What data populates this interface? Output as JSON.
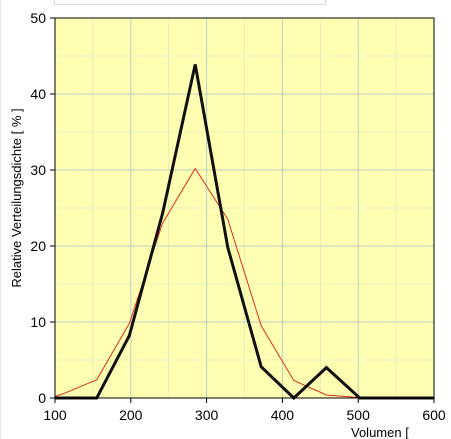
{
  "chart_data": {
    "type": "line",
    "title": "",
    "xlabel": "Volumen [",
    "ylabel": "Relative Verteilungsdichte [ % ]",
    "xlim": [
      100,
      600
    ],
    "ylim": [
      0,
      50
    ],
    "xticks": [
      100,
      200,
      300,
      400,
      500,
      600
    ],
    "yticks": [
      0,
      10,
      20,
      30,
      40,
      50
    ],
    "grid": true,
    "plot_background": "#ffffb4",
    "grid_color": "#b9cfc4",
    "series": [
      {
        "color": "#111111",
        "points": [
          {
            "x": 100,
            "y": 0
          },
          {
            "x": 155,
            "y": 0
          },
          {
            "x": 198,
            "y": 8.2
          },
          {
            "x": 242,
            "y": 24.3
          },
          {
            "x": 285,
            "y": 43.9
          },
          {
            "x": 328,
            "y": 19.8
          },
          {
            "x": 372,
            "y": 4.1
          },
          {
            "x": 415,
            "y": 0
          },
          {
            "x": 458,
            "y": 4.0
          },
          {
            "x": 502,
            "y": 0
          },
          {
            "x": 600,
            "y": 0
          }
        ]
      },
      {
        "color": "#d83218",
        "points": [
          {
            "x": 100,
            "y": 0.2
          },
          {
            "x": 112,
            "y": 0.6
          },
          {
            "x": 155,
            "y": 2.4
          },
          {
            "x": 198,
            "y": 9.8
          },
          {
            "x": 242,
            "y": 23.0
          },
          {
            "x": 285,
            "y": 30.2
          },
          {
            "x": 328,
            "y": 23.5
          },
          {
            "x": 372,
            "y": 9.5
          },
          {
            "x": 415,
            "y": 2.3
          },
          {
            "x": 458,
            "y": 0.4
          },
          {
            "x": 502,
            "y": 0.05
          },
          {
            "x": 600,
            "y": 0
          }
        ]
      }
    ]
  }
}
